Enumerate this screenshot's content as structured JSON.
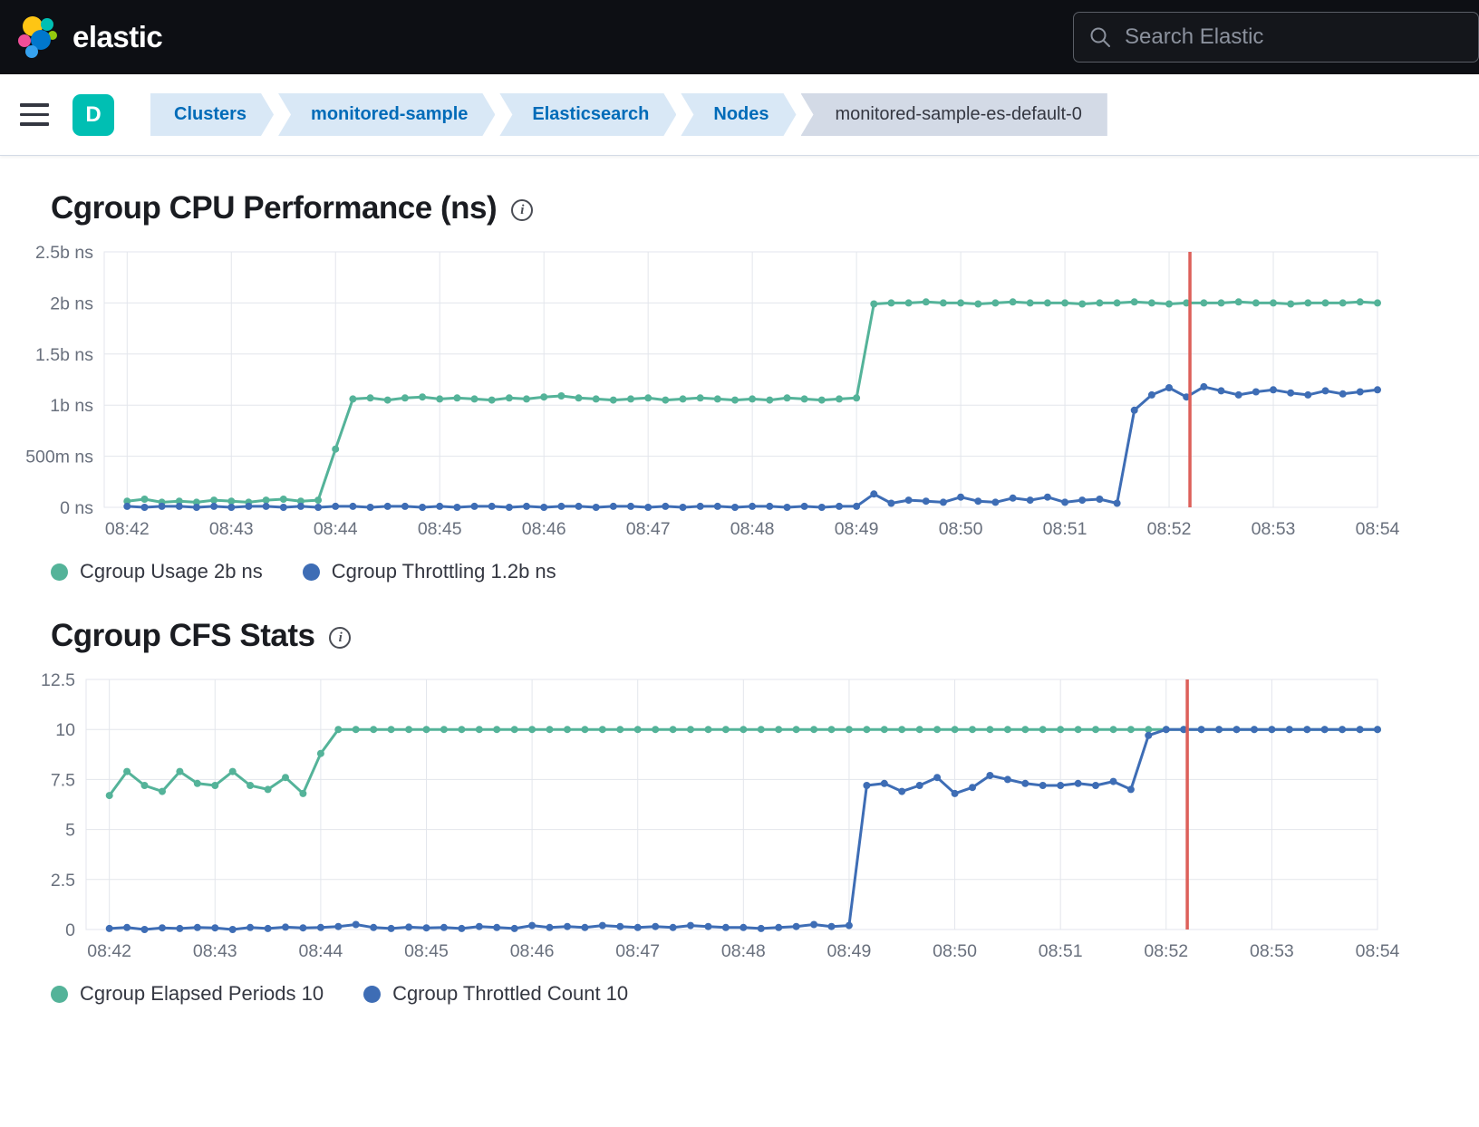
{
  "header": {
    "brand": "elastic",
    "search_placeholder": "Search Elastic"
  },
  "breadcrumbs": {
    "deployment_badge": "D",
    "items": [
      {
        "label": "Clusters"
      },
      {
        "label": "monitored-sample"
      },
      {
        "label": "Elasticsearch"
      },
      {
        "label": "Nodes"
      },
      {
        "label": "monitored-sample-es-default-0"
      }
    ]
  },
  "sections": [
    {
      "title": "Cgroup CPU Performance (ns)"
    },
    {
      "title": "Cgroup CFS Stats"
    }
  ],
  "colors": {
    "series_teal": "#54b399",
    "series_blue": "#3e6db5",
    "annotation_red": "#dd605a",
    "grid": "#e3e6ec",
    "axis_text": "#69707d",
    "badge_teal": "#00bfb3"
  },
  "chart_data": [
    {
      "type": "line",
      "title": "Cgroup CPU Performance (ns)",
      "x_unit": "minutes after 08:42, one point per 10s",
      "x_ticks": [
        0,
        1,
        2,
        3,
        4,
        5,
        6,
        7,
        8,
        9,
        10,
        11,
        12
      ],
      "x_tick_labels": [
        "08:42",
        "08:43",
        "08:44",
        "08:45",
        "08:46",
        "08:47",
        "08:48",
        "08:49",
        "08:50",
        "08:51",
        "08:52",
        "08:53",
        "08:54"
      ],
      "x_domain": [
        -0.22,
        12
      ],
      "x_start": 0,
      "x_step": 0.1666667,
      "ylim": [
        0,
        2.5
      ],
      "y_ticks": [
        0,
        0.5,
        1,
        1.5,
        2,
        2.5
      ],
      "y_tick_labels": [
        "0 ns",
        "500m ns",
        "1b ns",
        "1.5b ns",
        "2b ns",
        "2.5b ns"
      ],
      "annotation_x": 10.2,
      "series": [
        {
          "name": "Cgroup Usage 2b ns",
          "color": "#54b399",
          "values": [
            0.06,
            0.08,
            0.05,
            0.06,
            0.05,
            0.07,
            0.06,
            0.05,
            0.07,
            0.08,
            0.06,
            0.07,
            0.57,
            1.06,
            1.07,
            1.05,
            1.07,
            1.08,
            1.06,
            1.07,
            1.06,
            1.05,
            1.07,
            1.06,
            1.08,
            1.09,
            1.07,
            1.06,
            1.05,
            1.06,
            1.07,
            1.05,
            1.06,
            1.07,
            1.06,
            1.05,
            1.06,
            1.05,
            1.07,
            1.06,
            1.05,
            1.06,
            1.07,
            1.99,
            2,
            2,
            2.01,
            2,
            2,
            1.99,
            2,
            2.01,
            2,
            2,
            2,
            1.99,
            2,
            2,
            2.01,
            2,
            1.99,
            2,
            2,
            2,
            2.01,
            2,
            2,
            1.99,
            2,
            2,
            2,
            2.01,
            2
          ]
        },
        {
          "name": "Cgroup Throttling 1.2b ns",
          "color": "#3e6db5",
          "values": [
            0.01,
            0,
            0.01,
            0.01,
            0,
            0.01,
            0,
            0.01,
            0.01,
            0,
            0.01,
            0,
            0.01,
            0.01,
            0,
            0.01,
            0.01,
            0,
            0.01,
            0,
            0.01,
            0.01,
            0,
            0.01,
            0,
            0.01,
            0.01,
            0,
            0.01,
            0.01,
            0,
            0.01,
            0,
            0.01,
            0.01,
            0,
            0.01,
            0.01,
            0,
            0.01,
            0,
            0.01,
            0.01,
            0.13,
            0.04,
            0.07,
            0.06,
            0.05,
            0.1,
            0.06,
            0.05,
            0.09,
            0.07,
            0.1,
            0.05,
            0.07,
            0.08,
            0.04,
            0.95,
            1.1,
            1.17,
            1.08,
            1.18,
            1.14,
            1.1,
            1.13,
            1.15,
            1.12,
            1.1,
            1.14,
            1.11,
            1.13,
            1.15
          ]
        }
      ]
    },
    {
      "type": "line",
      "title": "Cgroup CFS Stats",
      "x_unit": "minutes after 08:42, one point per 10s",
      "x_ticks": [
        0,
        1,
        2,
        3,
        4,
        5,
        6,
        7,
        8,
        9,
        10,
        11,
        12
      ],
      "x_tick_labels": [
        "08:42",
        "08:43",
        "08:44",
        "08:45",
        "08:46",
        "08:47",
        "08:48",
        "08:49",
        "08:50",
        "08:51",
        "08:52",
        "08:53",
        "08:54"
      ],
      "x_domain": [
        -0.22,
        12
      ],
      "x_start": 0,
      "x_step": 0.1666667,
      "ylim": [
        0,
        12.5
      ],
      "y_ticks": [
        0,
        2.5,
        5,
        7.5,
        10,
        12.5
      ],
      "y_tick_labels": [
        "0",
        "2.5",
        "5",
        "7.5",
        "10",
        "12.5"
      ],
      "annotation_x": 10.2,
      "series": [
        {
          "name": "Cgroup Elapsed Periods 10",
          "color": "#54b399",
          "values": [
            6.7,
            7.9,
            7.2,
            6.9,
            7.9,
            7.3,
            7.2,
            7.9,
            7.2,
            7,
            7.6,
            6.8,
            8.8,
            10,
            10,
            10,
            10,
            10,
            10,
            10,
            10,
            10,
            10,
            10,
            10,
            10,
            10,
            10,
            10,
            10,
            10,
            10,
            10,
            10,
            10,
            10,
            10,
            10,
            10,
            10,
            10,
            10,
            10,
            10,
            10,
            10,
            10,
            10,
            10,
            10,
            10,
            10,
            10,
            10,
            10,
            10,
            10,
            10,
            10,
            10,
            10,
            10,
            10,
            10,
            10,
            10,
            10,
            10,
            10,
            10,
            10,
            10,
            10
          ]
        },
        {
          "name": "Cgroup Throttled Count 10",
          "color": "#3e6db5",
          "values": [
            0.05,
            0.1,
            0,
            0.08,
            0.05,
            0.1,
            0.08,
            0,
            0.1,
            0.05,
            0.12,
            0.08,
            0.1,
            0.15,
            0.25,
            0.1,
            0.05,
            0.12,
            0.08,
            0.1,
            0.05,
            0.15,
            0.1,
            0.05,
            0.2,
            0.1,
            0.15,
            0.1,
            0.2,
            0.15,
            0.1,
            0.15,
            0.1,
            0.2,
            0.15,
            0.1,
            0.1,
            0.05,
            0.1,
            0.15,
            0.25,
            0.15,
            0.2,
            7.2,
            7.3,
            6.9,
            7.2,
            7.6,
            6.8,
            7.1,
            7.7,
            7.5,
            7.3,
            7.2,
            7.2,
            7.3,
            7.2,
            7.4,
            7,
            9.7,
            10,
            10,
            10,
            10,
            10,
            10,
            10,
            10,
            10,
            10,
            10,
            10,
            10
          ]
        }
      ]
    }
  ]
}
